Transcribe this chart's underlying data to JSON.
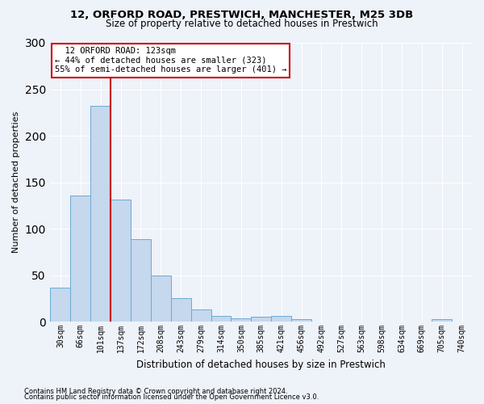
{
  "title1": "12, ORFORD ROAD, PRESTWICH, MANCHESTER, M25 3DB",
  "title2": "Size of property relative to detached houses in Prestwich",
  "xlabel": "Distribution of detached houses by size in Prestwich",
  "ylabel": "Number of detached properties",
  "footer1": "Contains HM Land Registry data © Crown copyright and database right 2024.",
  "footer2": "Contains public sector information licensed under the Open Government Licence v3.0.",
  "bin_labels": [
    "30sqm",
    "66sqm",
    "101sqm",
    "137sqm",
    "172sqm",
    "208sqm",
    "243sqm",
    "279sqm",
    "314sqm",
    "350sqm",
    "385sqm",
    "421sqm",
    "456sqm",
    "492sqm",
    "527sqm",
    "563sqm",
    "598sqm",
    "634sqm",
    "669sqm",
    "705sqm",
    "740sqm"
  ],
  "bar_values": [
    37,
    136,
    232,
    131,
    89,
    50,
    25,
    13,
    6,
    4,
    5,
    6,
    3,
    0,
    0,
    0,
    0,
    0,
    0,
    3,
    0
  ],
  "bar_color": "#c5d8ed",
  "bar_edge_color": "#6aaad4",
  "subject_label": "12 ORFORD ROAD: 123sqm",
  "annotation_line1": "← 44% of detached houses are smaller (323)",
  "annotation_line2": "55% of semi-detached houses are larger (401) →",
  "annotation_box_color": "#ffffff",
  "annotation_box_edge_color": "#cc0000",
  "vline_color": "#cc0000",
  "vline_x_bar_index": 2.5,
  "ylim": [
    0,
    300
  ],
  "yticks": [
    0,
    50,
    100,
    150,
    200,
    250,
    300
  ],
  "background_color": "#eef2f9",
  "grid_color": "#ffffff",
  "title1_fontsize": 9.5,
  "title2_fontsize": 8.5
}
